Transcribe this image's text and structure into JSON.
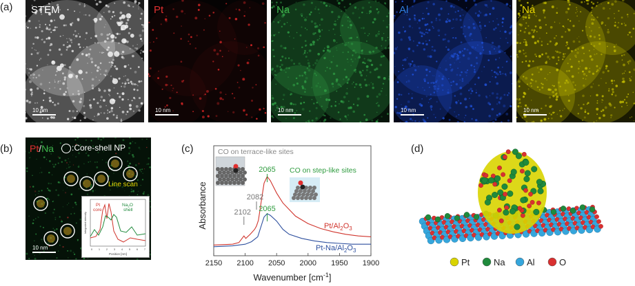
{
  "panel_a": {
    "label": "(a)",
    "tiles": [
      {
        "name": "stem",
        "title": "STEM",
        "title_color": "#ffffff",
        "scale": "10 nm",
        "base": "#1a1a1a",
        "dot": "#e6e6e6"
      },
      {
        "name": "pt",
        "title": "Pt",
        "title_color": "#e03030",
        "scale": "10 nm",
        "base": "#050303",
        "dot": "#e02828"
      },
      {
        "name": "na",
        "title": "Na",
        "title_color": "#3db04a",
        "scale": "10 nm",
        "base": "#06140a",
        "dot": "#2f9c44"
      },
      {
        "name": "al",
        "title": "Al",
        "title_color": "#2f7ee0",
        "scale": "10 nm",
        "base": "#030719",
        "dot": "#1f50d6"
      },
      {
        "name": "na2",
        "title": "Na",
        "title_color": "#e5d400",
        "scale": "10 nm",
        "base": "#1a1a02",
        "dot": "#c8c100"
      }
    ]
  },
  "panel_b": {
    "label": "(b)",
    "title_pt": "Pt",
    "title_slash": "/",
    "title_na": "Na",
    "legend": ":Core-shell NP",
    "line_scan": "Line scan",
    "scale": "10 nm",
    "inset": {
      "pt_label": "Pt",
      "pt_label2": "core",
      "na_label": "Na",
      "na_label_sub": "2",
      "na_label_end": "O",
      "na_label2": "shell",
      "ylabel": "Integrated intensity",
      "xlabel": "Position [nm]",
      "xticks": [
        "0",
        "1",
        "2",
        "3",
        "4",
        "5",
        "6",
        "7"
      ]
    }
  },
  "panel_c": {
    "label": "(c)",
    "ylabel": "Absorbance",
    "xlabel": "Wavenumber [cm",
    "xlabel_sup": "-1",
    "xlabel_end": "]",
    "terrace_label": "CO on terrace-like sites",
    "step_label": "CO on step-like sites",
    "peak_labels": [
      {
        "text": "2065",
        "x": 2065,
        "color": "#2e9b3e"
      },
      {
        "text": "2082",
        "x": 2082,
        "color": "#777777"
      },
      {
        "text": "2102",
        "x": 2102,
        "color": "#777777"
      },
      {
        "text": "2065",
        "x": 2065,
        "color": "#2e9b3e"
      }
    ],
    "series_labels": [
      {
        "pre": "Pt/Al",
        "sub": "2",
        "mid": "O",
        "sub2": "3",
        "color": "#d0342c"
      },
      {
        "pre": "Pt-Na/Al",
        "sub": "2",
        "mid": "O",
        "sub2": "3",
        "color": "#2d4f9e"
      }
    ]
  },
  "chart_data": {
    "type": "line",
    "xlabel": "Wavenumber [cm-1]",
    "ylabel": "Absorbance",
    "xlim": [
      2150,
      1900
    ],
    "xticks": [
      2150,
      2100,
      2050,
      2000,
      1950,
      1900
    ],
    "series": [
      {
        "name": "Pt/Al2O3",
        "color": "#d0342c",
        "x": [
          2150,
          2120,
          2110,
          2104,
          2102,
          2099,
          2092,
          2085,
          2082,
          2079,
          2074,
          2070,
          2065,
          2060,
          2050,
          2040,
          2020,
          2000,
          1980,
          1960,
          1940,
          1920,
          1900
        ],
        "y": [
          0.03,
          0.04,
          0.06,
          0.12,
          0.14,
          0.11,
          0.16,
          0.22,
          0.26,
          0.33,
          0.58,
          0.78,
          0.86,
          0.81,
          0.66,
          0.54,
          0.38,
          0.29,
          0.23,
          0.19,
          0.16,
          0.14,
          0.13
        ]
      },
      {
        "name": "Pt-Na/Al2O3",
        "color": "#2d4f9e",
        "x": [
          2150,
          2120,
          2100,
          2090,
          2080,
          2075,
          2070,
          2065,
          2060,
          2050,
          2040,
          2030,
          2010,
          1990,
          1970,
          1950,
          1930,
          1900
        ],
        "y": [
          0.01,
          0.02,
          0.04,
          0.07,
          0.13,
          0.25,
          0.37,
          0.41,
          0.39,
          0.32,
          0.22,
          0.16,
          0.11,
          0.08,
          0.06,
          0.05,
          0.04,
          0.04
        ]
      }
    ]
  },
  "panel_d": {
    "label": "(d)",
    "legend": [
      {
        "label": "Pt",
        "color": "#d9d400"
      },
      {
        "label": "Na",
        "color": "#1f8a3c"
      },
      {
        "label": "Al",
        "color": "#35a6dc"
      },
      {
        "label": "O",
        "color": "#d93030"
      }
    ]
  }
}
